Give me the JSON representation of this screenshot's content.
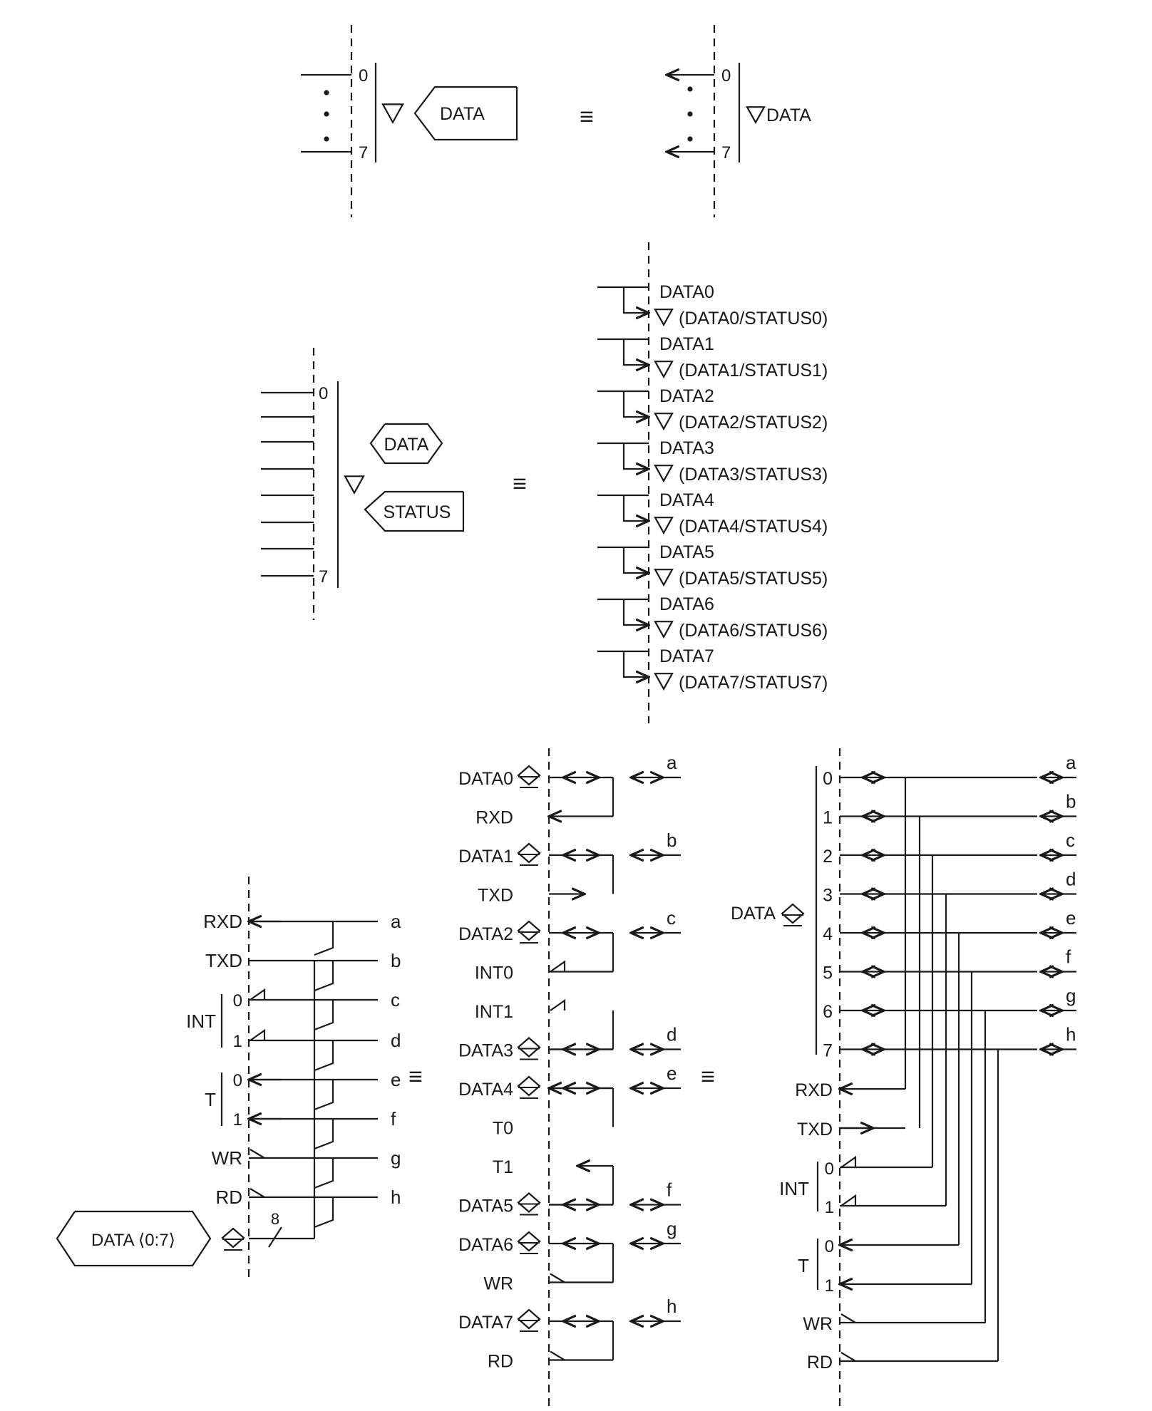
{
  "equivalence_symbol": "≡",
  "fig1": {
    "bus_label": "DATA",
    "bit_first": "0",
    "bit_last": "7"
  },
  "fig2": {
    "bus_labels": [
      "DATA",
      "STATUS"
    ],
    "bit_first": "0",
    "bit_last": "7",
    "expanded": [
      {
        "name": "DATA0",
        "combined": "(DATA0/STATUS0)"
      },
      {
        "name": "DATA1",
        "combined": "(DATA1/STATUS1)"
      },
      {
        "name": "DATA2",
        "combined": "(DATA2/STATUS2)"
      },
      {
        "name": "DATA3",
        "combined": "(DATA3/STATUS3)"
      },
      {
        "name": "DATA4",
        "combined": "(DATA4/STATUS4)"
      },
      {
        "name": "DATA5",
        "combined": "(DATA5/STATUS5)"
      },
      {
        "name": "DATA6",
        "combined": "(DATA6/STATUS6)"
      },
      {
        "name": "DATA7",
        "combined": "(DATA7/STATUS7)"
      }
    ]
  },
  "fig3": {
    "left": {
      "pins": [
        {
          "label": "RXD",
          "net": "a"
        },
        {
          "label": "TXD",
          "net": "b"
        },
        {
          "label": "0",
          "net": "c"
        },
        {
          "label": "1",
          "net": "d"
        },
        {
          "label": "0",
          "net": "e"
        },
        {
          "label": "1",
          "net": "f"
        },
        {
          "label": "WR",
          "net": "g"
        },
        {
          "label": "RD",
          "net": "h"
        }
      ],
      "group_int": "INT",
      "group_t": "T",
      "bus_label": "DATA ⟨0:7⟩",
      "bus_width": "8"
    },
    "middle": {
      "pins": [
        "DATA0",
        "RXD",
        "DATA1",
        "TXD",
        "DATA2",
        "INT0",
        "INT1",
        "DATA3",
        "DATA4",
        "T0",
        "T1",
        "DATA5",
        "DATA6",
        "WR",
        "DATA7",
        "RD"
      ],
      "nets": [
        "a",
        "b",
        "c",
        "d",
        "e",
        "f",
        "g",
        "h"
      ]
    },
    "right": {
      "bus_label": "DATA",
      "bits": [
        "0",
        "1",
        "2",
        "3",
        "4",
        "5",
        "6",
        "7"
      ],
      "nets": [
        "a",
        "b",
        "c",
        "d",
        "e",
        "f",
        "g",
        "h"
      ],
      "lower_pins": [
        {
          "label": "RXD"
        },
        {
          "label": "TXD"
        },
        {
          "label": "0"
        },
        {
          "label": "1"
        },
        {
          "label": "0"
        },
        {
          "label": "1"
        },
        {
          "label": "WR"
        },
        {
          "label": "RD"
        }
      ],
      "group_int": "INT",
      "group_t": "T"
    }
  }
}
